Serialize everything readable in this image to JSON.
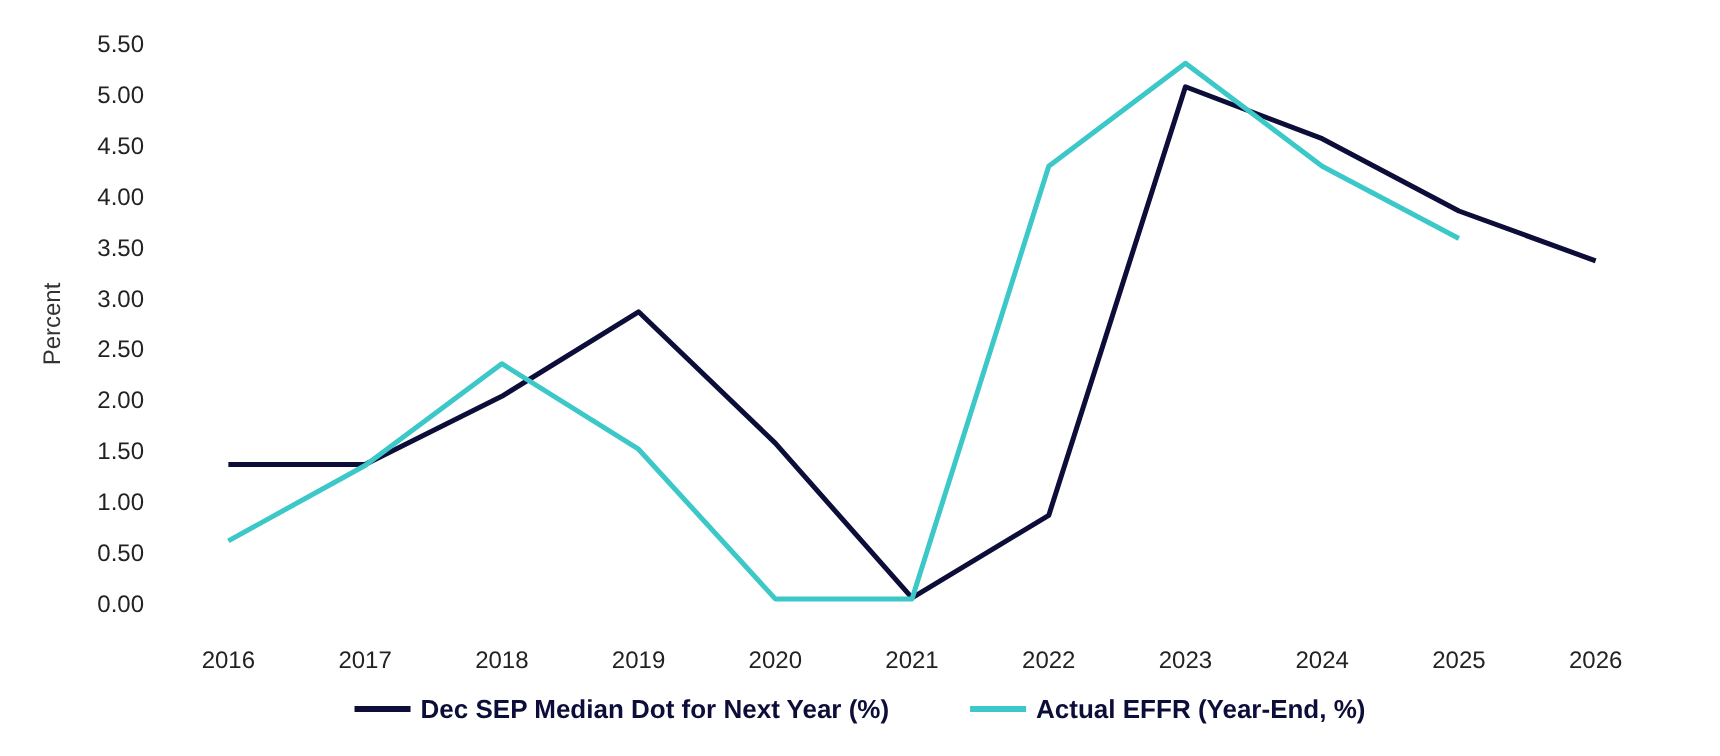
{
  "chart_data": {
    "type": "line",
    "ylabel": "Percent",
    "categories": [
      "2016",
      "2017",
      "2018",
      "2019",
      "2020",
      "2021",
      "2022",
      "2023",
      "2024",
      "2025",
      "2026"
    ],
    "series": [
      {
        "name": "Dec SEP Median Dot for Next Year (%)",
        "color": "#0d0d3a",
        "values": [
          1.37,
          1.37,
          2.04,
          2.87,
          1.58,
          0.06,
          0.87,
          5.08,
          4.57,
          3.86,
          3.37
        ]
      },
      {
        "name": "Actual EFFR (Year-End, %)",
        "color": "#3cc8c8",
        "values": [
          0.62,
          1.36,
          2.36,
          1.52,
          0.05,
          0.05,
          4.3,
          5.31,
          4.3,
          3.59,
          null
        ]
      }
    ],
    "ylim": [
      0,
      5.5
    ],
    "yticks": [
      {
        "value": 0,
        "label": "0.00"
      },
      {
        "value": 0.5,
        "label": "0.50"
      },
      {
        "value": 1,
        "label": "1.00"
      },
      {
        "value": 1.5,
        "label": "1.50"
      },
      {
        "value": 2,
        "label": "2.00"
      },
      {
        "value": 2.5,
        "label": "2.50"
      },
      {
        "value": 3,
        "label": "3.00"
      },
      {
        "value": 3.5,
        "label": "3.50"
      },
      {
        "value": 4,
        "label": "4.00"
      },
      {
        "value": 4.5,
        "label": "4.50"
      },
      {
        "value": 5,
        "label": "5.00"
      },
      {
        "value": 5.5,
        "label": "5.50"
      }
    ],
    "grid": false,
    "legend": "bottom",
    "marker": "none",
    "line_style": "solid"
  }
}
